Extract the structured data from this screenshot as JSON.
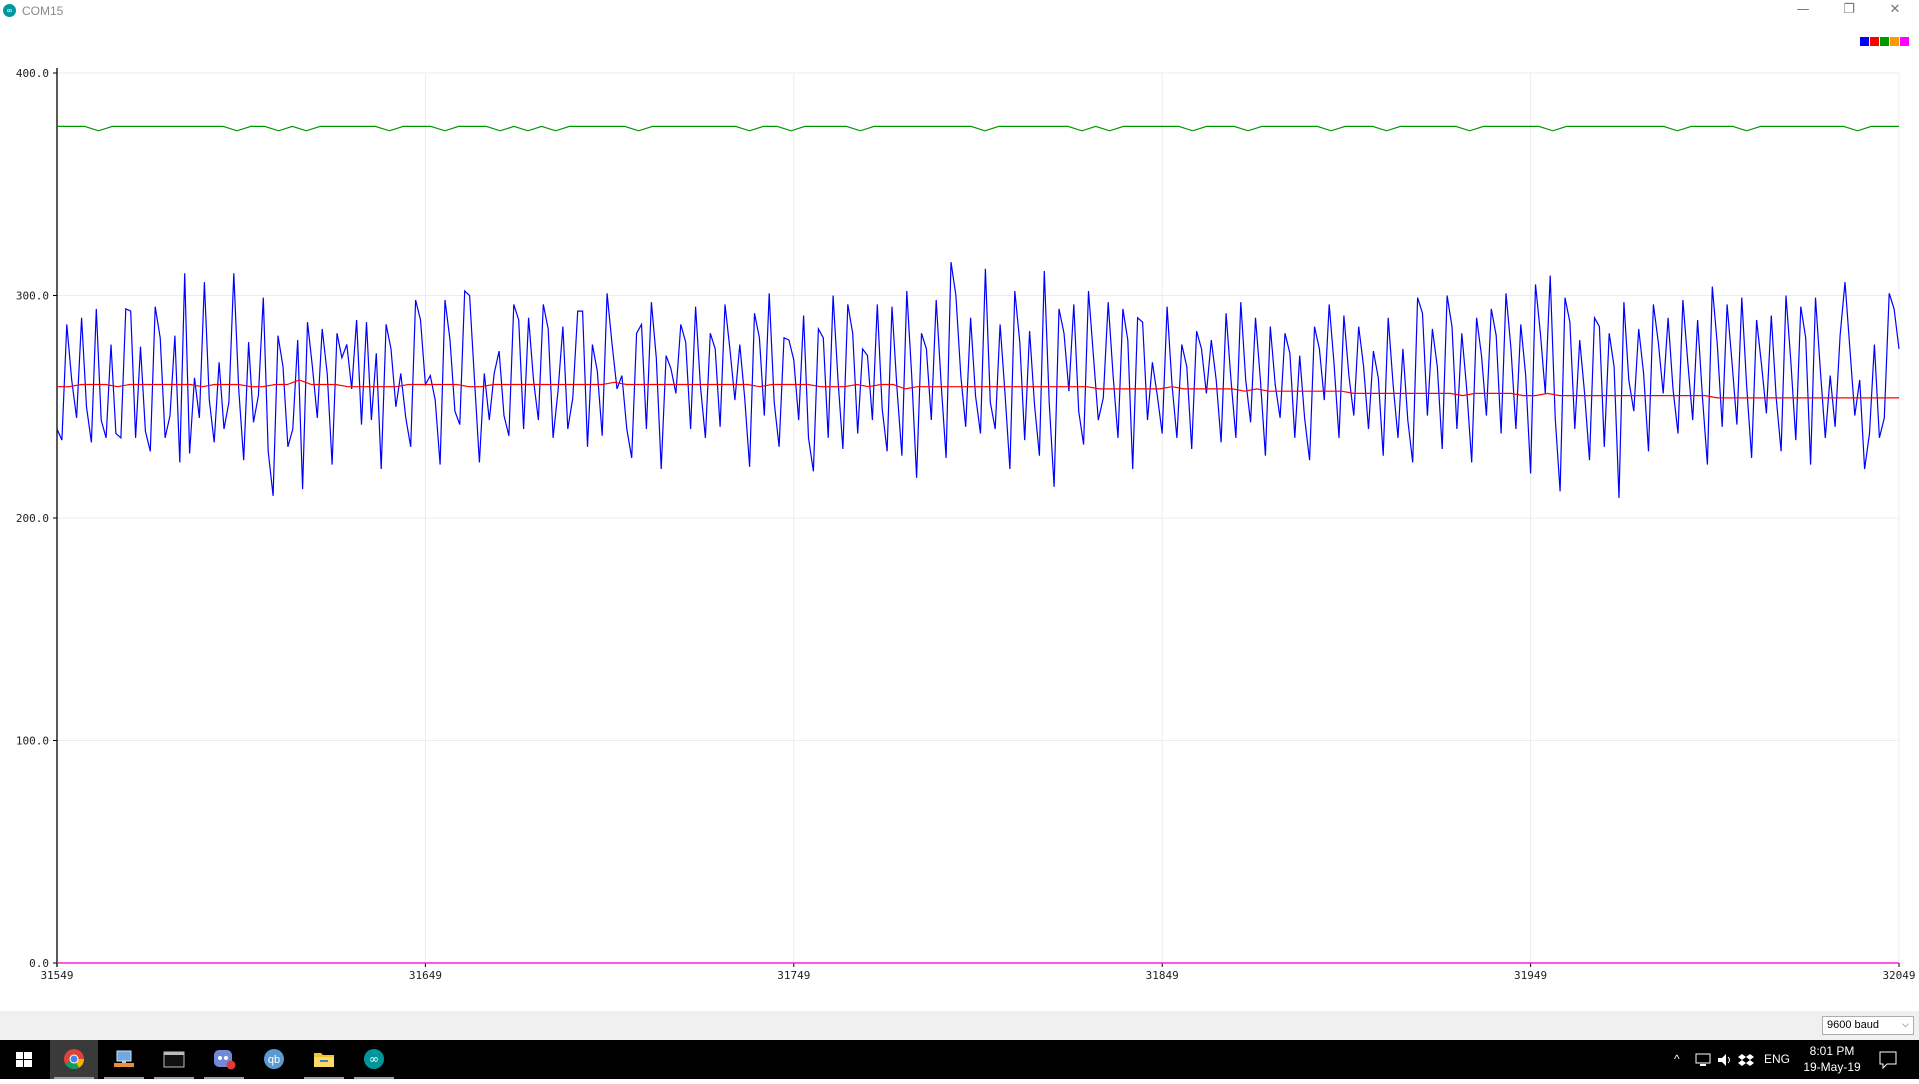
{
  "window": {
    "title": "COM15",
    "minimize_glyph": "—",
    "restore_glyph": "❐",
    "close_glyph": "✕"
  },
  "legend_colors": [
    "#0000ff",
    "#ff0000",
    "#009900",
    "#ff9900",
    "#ff00ff"
  ],
  "chart_data": {
    "type": "line",
    "title": "",
    "xlabel": "",
    "ylabel": "",
    "ylim": [
      0,
      400
    ],
    "xlim": [
      31549,
      32049
    ],
    "y_ticks": [
      "400.0",
      "300.0",
      "200.0",
      "100.0",
      "0.0"
    ],
    "x_ticks": [
      "31549",
      "31649",
      "31749",
      "31849",
      "31949",
      "32049"
    ],
    "grid": true,
    "legend": "top-right",
    "series": [
      {
        "color": "#0000ff",
        "description": "oscillating signal",
        "values": [
          240,
          235,
          287,
          262,
          245,
          290,
          250,
          234,
          294,
          244,
          236,
          278,
          238,
          236,
          294,
          293,
          236,
          277,
          239,
          230,
          295,
          281,
          236,
          246,
          282,
          225,
          310,
          229,
          263,
          245,
          306,
          253,
          234,
          270,
          240,
          252,
          310,
          258,
          226,
          279,
          243,
          255,
          299,
          230,
          210,
          282,
          268,
          232,
          240,
          280,
          213,
          288,
          268,
          245,
          285,
          265,
          224,
          283,
          272,
          278,
          258,
          289,
          242,
          288,
          244,
          274,
          222,
          287,
          276,
          250,
          265,
          245,
          232,
          298,
          289,
          260,
          264,
          253,
          224,
          298,
          280,
          248,
          242,
          302,
          300,
          262,
          225,
          265,
          244,
          265,
          275,
          246,
          237,
          296,
          289,
          240,
          290,
          262,
          244,
          296,
          285,
          236,
          257,
          286,
          240,
          254,
          293,
          293,
          232,
          278,
          266,
          237,
          301,
          278,
          258,
          264,
          240,
          227,
          283,
          287,
          240,
          297,
          272,
          222,
          273,
          267,
          256,
          287,
          279,
          240,
          295,
          259,
          236,
          283,
          276,
          241,
          296,
          276,
          253,
          278,
          254,
          223,
          292,
          281,
          246,
          301,
          252,
          232,
          281,
          280,
          271,
          244,
          291,
          236,
          221,
          285,
          281,
          236,
          300,
          262,
          231,
          296,
          283,
          238,
          276,
          273,
          244,
          296,
          249,
          230,
          295,
          258,
          228,
          302,
          264,
          218,
          283,
          276,
          244,
          298,
          260,
          227,
          315,
          300,
          264,
          241,
          290,
          255,
          238,
          312,
          252,
          240,
          287,
          256,
          222,
          302,
          279,
          235,
          284,
          251,
          228,
          311,
          252,
          214,
          294,
          283,
          257,
          296,
          248,
          233,
          302,
          273,
          244,
          254,
          297,
          264,
          236,
          294,
          280,
          222,
          290,
          288,
          244,
          270,
          255,
          238,
          295,
          260,
          236,
          278,
          268,
          231,
          284,
          276,
          256,
          280,
          262,
          234,
          292,
          262,
          236,
          297,
          262,
          243,
          290,
          262,
          228,
          286,
          260,
          245,
          283,
          274,
          236,
          273,
          245,
          226,
          286,
          276,
          253,
          296,
          269,
          236,
          291,
          264,
          246,
          286,
          268,
          240,
          275,
          263,
          228,
          290,
          260,
          236,
          276,
          244,
          225,
          299,
          292,
          246,
          285,
          268,
          231,
          300,
          286,
          240,
          283,
          258,
          225,
          290,
          273,
          246,
          294,
          282,
          238,
          301,
          276,
          240,
          287,
          264,
          220,
          305,
          283,
          256,
          309,
          245,
          212,
          299,
          288,
          240,
          280,
          256,
          226,
          290,
          286,
          232,
          283,
          268,
          209,
          297,
          262,
          248,
          285,
          265,
          230,
          296,
          279,
          256,
          290,
          258,
          238,
          298,
          270,
          244,
          289,
          254,
          224,
          304,
          278,
          241,
          296,
          270,
          242,
          299,
          259,
          227,
          289,
          269,
          247,
          291,
          254,
          230,
          300,
          270,
          235,
          295,
          281,
          224,
          299,
          266,
          236,
          264,
          241,
          282,
          306,
          276,
          246,
          262,
          222,
          238,
          278,
          236,
          245,
          301,
          294,
          276
        ]
      },
      {
        "color": "#ff0000",
        "description": "smoothed average",
        "values": [
          259,
          259,
          260,
          260,
          260,
          259,
          260,
          260,
          260,
          260,
          260,
          260,
          259,
          260,
          260,
          260,
          259,
          259,
          260,
          260,
          262,
          260,
          260,
          260,
          259,
          259,
          259,
          259,
          259,
          260,
          260,
          260,
          260,
          260,
          259,
          259,
          260,
          260,
          260,
          260,
          260,
          260,
          260,
          260,
          260,
          260,
          261,
          260,
          260,
          260,
          260,
          260,
          260,
          260,
          260,
          260,
          260,
          260,
          259,
          260,
          260,
          260,
          260,
          259,
          259,
          259,
          260,
          259,
          260,
          260,
          258,
          259,
          259,
          259,
          259,
          259,
          259,
          259,
          259,
          259,
          259,
          259,
          259,
          259,
          259,
          259,
          258,
          258,
          258,
          258,
          258,
          258,
          259,
          258,
          258,
          258,
          258,
          258,
          257,
          258,
          257,
          257,
          257,
          257,
          257,
          257,
          257,
          256,
          256,
          256,
          256,
          256,
          256,
          256,
          256,
          256,
          255,
          256,
          256,
          256,
          256,
          255,
          255,
          256,
          255,
          255,
          255,
          255,
          255,
          255,
          255,
          255,
          255,
          255,
          255,
          255,
          255,
          254,
          254,
          254,
          254,
          254,
          254,
          254,
          254,
          254,
          254,
          254,
          254,
          254,
          254,
          254,
          254
        ]
      },
      {
        "color": "#009900",
        "description": "near-constant level",
        "values": [
          376,
          376,
          376,
          374,
          376,
          376,
          376,
          376,
          376,
          376,
          376,
          376,
          376,
          374,
          376,
          376,
          374,
          376,
          374,
          376,
          376,
          376,
          376,
          376,
          374,
          376,
          376,
          376,
          374,
          376,
          376,
          376,
          374,
          376,
          374,
          376,
          374,
          376,
          376,
          376,
          376,
          376,
          374,
          376,
          376,
          376,
          376,
          376,
          376,
          376,
          374,
          376,
          376,
          374,
          376,
          376,
          376,
          376,
          374,
          376,
          376,
          376,
          376,
          376,
          376,
          376,
          376,
          374,
          376,
          376,
          376,
          376,
          376,
          376,
          374,
          376,
          374,
          376,
          376,
          376,
          376,
          376,
          374,
          376,
          376,
          376,
          374,
          376,
          376,
          376,
          376,
          376,
          374,
          376,
          376,
          376,
          374,
          376,
          376,
          376,
          376,
          376,
          374,
          376,
          376,
          376,
          376,
          376,
          374,
          376,
          376,
          376,
          376,
          376,
          376,
          376,
          376,
          374,
          376,
          376,
          376,
          376,
          374,
          376,
          376,
          376,
          376,
          376,
          376,
          376,
          374,
          376,
          376,
          376
        ]
      },
      {
        "color": "#ff9900",
        "values": [
          0,
          0
        ]
      },
      {
        "color": "#ff00ff",
        "values": [
          0,
          0
        ]
      }
    ]
  },
  "statusbar": {
    "baud_value": "9600 baud",
    "baud_chevron": "⌵"
  },
  "taskbar": {
    "apps": [
      "start-icon",
      "chrome-icon",
      "network-app-icon",
      "terminal-icon",
      "discord-icon",
      "qbittorrent-icon",
      "file-explorer-icon",
      "arduino-icon"
    ],
    "tray_chevron": "^",
    "language": "ENG",
    "time": "8:01 PM",
    "date": "19-May-19"
  }
}
